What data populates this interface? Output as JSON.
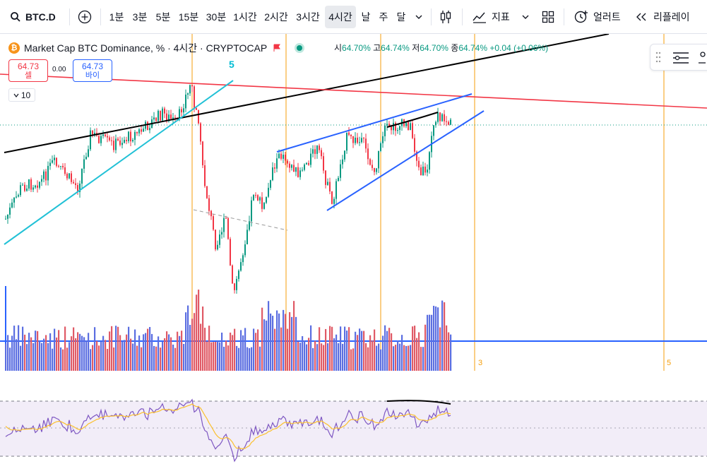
{
  "toolbar": {
    "symbol": "BTC.D",
    "intervals": [
      "1분",
      "3분",
      "5분",
      "15분",
      "30분",
      "1시간",
      "2시간",
      "3시간",
      "4시간",
      "날",
      "주",
      "달"
    ],
    "active_interval": "4시간",
    "indicators_label": "지표",
    "alert_label": "얼러트",
    "replay_label": "리플레이"
  },
  "legend": {
    "title": "Market Cap BTC Dominance, % · 4시간 · CRYPTOCAP",
    "coin_glyph": "₿",
    "open_label": "시",
    "open": "64.70%",
    "high_label": "고",
    "high": "64.74%",
    "low_label": "저",
    "low": "64.70%",
    "close_label": "종",
    "close": "64.74%",
    "change": "+0.04 (+0.06%)"
  },
  "trade": {
    "sell_price": "64.73",
    "sell_label": "셀",
    "spread": "0.00",
    "buy_price": "64.73",
    "buy_label": "바이",
    "quantity": "10"
  },
  "annotations": {
    "wave_top_label": "5",
    "axis_label_3": "3",
    "axis_label_5": "5"
  },
  "colors": {
    "up": "#089981",
    "down": "#f23645",
    "trendline_blue": "#2962ff",
    "trendline_cyan": "#22c1d6",
    "trendline_black": "#000000",
    "trendline_red": "#f23645",
    "vertical_lines": "#f59e0b",
    "rsi_line": "#7e57c2",
    "rsi_ma": "#fbc02d",
    "rsi_band": "#ede7f6"
  },
  "icons": {
    "search": "search-icon",
    "add": "add-symbol-icon",
    "chart_type": "candles-icon",
    "indicators": "indicators-icon",
    "layout": "layout-grid-icon",
    "alert": "alert-clock-icon",
    "replay": "replay-icon"
  }
}
